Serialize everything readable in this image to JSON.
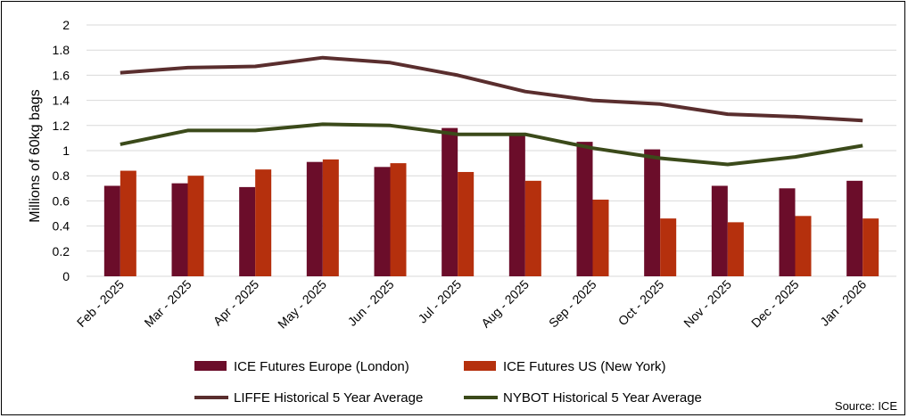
{
  "chart_data": {
    "type": "bar",
    "title": "",
    "xlabel": "",
    "ylabel": "Millions of 60kg bags",
    "ylim": [
      0,
      2
    ],
    "yticks": [
      "0",
      "0.2",
      "0.4",
      "0.6",
      "0.8",
      "1",
      "1.2",
      "1.4",
      "1.6",
      "1.8",
      "2"
    ],
    "ytick_values": [
      0,
      0.2,
      0.4,
      0.6,
      0.8,
      1,
      1.2,
      1.4,
      1.6,
      1.8,
      2
    ],
    "grid": true,
    "categories": [
      "Feb - 2025",
      "Mar - 2025",
      "Apr - 2025",
      "May - 2025",
      "Jun - 2025",
      "Jul - 2025",
      "Aug - 2025",
      "Sep - 2025",
      "Oct - 2025",
      "Nov - 2025",
      "Dec - 2025",
      "Jan - 2026"
    ],
    "series": [
      {
        "name": "ICE Futures Europe (London)",
        "type": "bar",
        "color": "#6b0d2a",
        "values": [
          0.72,
          0.74,
          0.71,
          0.91,
          0.87,
          1.18,
          1.12,
          1.07,
          1.01,
          0.72,
          0.7,
          0.76
        ]
      },
      {
        "name": "ICE Futures US (New York)",
        "type": "bar",
        "color": "#b5300d",
        "values": [
          0.84,
          0.8,
          0.85,
          0.93,
          0.9,
          0.83,
          0.76,
          0.61,
          0.46,
          0.43,
          0.48,
          0.46
        ]
      },
      {
        "name": "LIFFE Historical 5 Year Average",
        "type": "line",
        "color": "#5a2e2e",
        "values": [
          1.62,
          1.66,
          1.67,
          1.74,
          1.7,
          1.6,
          1.47,
          1.4,
          1.37,
          1.29,
          1.27,
          1.24
        ]
      },
      {
        "name": "NYBOT Historical 5 Year Average",
        "type": "line",
        "color": "#3b4a1a",
        "values": [
          1.05,
          1.16,
          1.16,
          1.21,
          1.2,
          1.13,
          1.13,
          1.02,
          0.94,
          0.89,
          0.95,
          1.04
        ]
      }
    ],
    "legend_position": "bottom",
    "source": "Source: ICE"
  }
}
